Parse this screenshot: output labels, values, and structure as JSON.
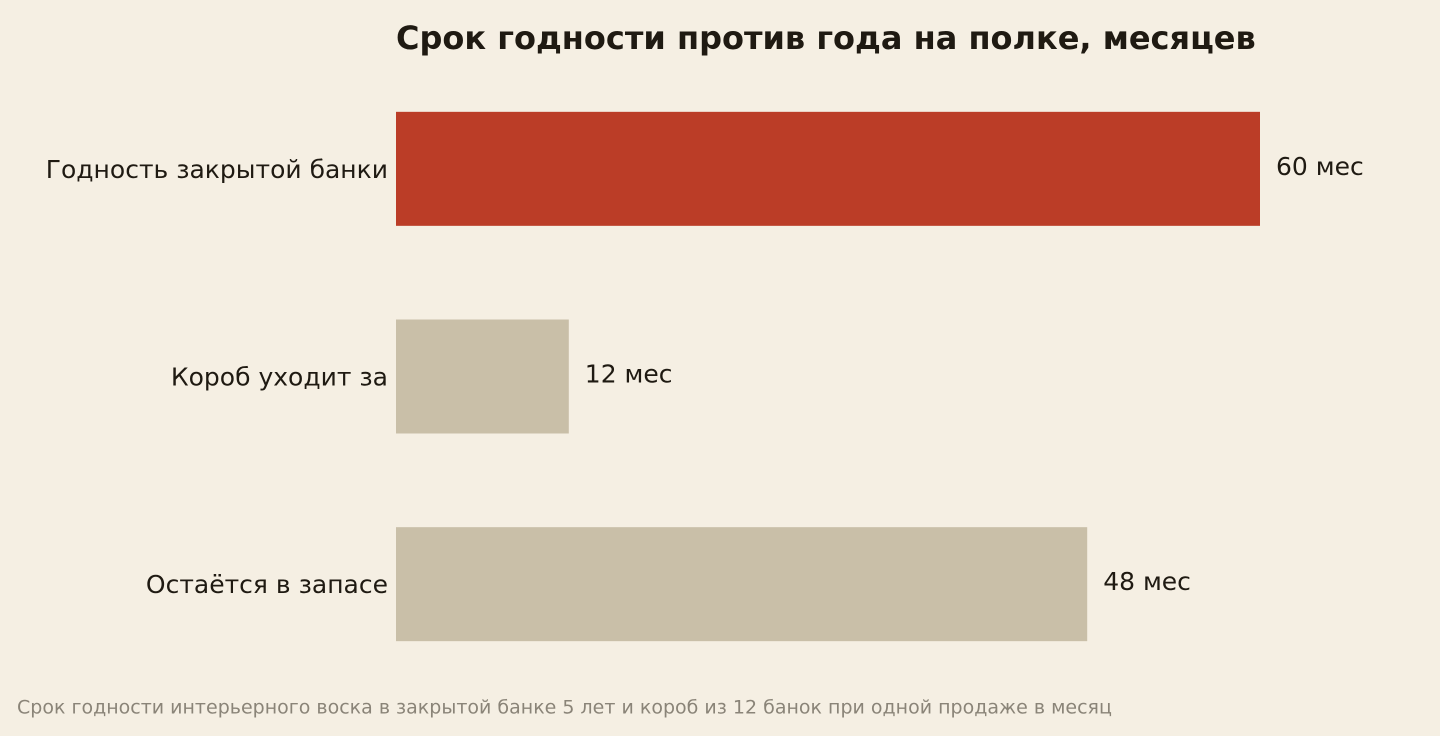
{
  "chart_data": {
    "type": "bar",
    "orientation": "horizontal",
    "title": "Срок годности против года на полке, месяцев",
    "categories": [
      "Годность закрытой банки",
      "Короб уходит за",
      "Остаётся в запасе"
    ],
    "values": [
      60,
      12,
      48
    ],
    "value_labels": [
      "60 мес",
      "12 мес",
      "48 мес"
    ],
    "colors": [
      "#bb3d27",
      "#c9bfa8",
      "#c9bfa8"
    ],
    "xlim": [
      0,
      60
    ],
    "note": "Срок годности интерьерного воска в закрытой банке 5 лет и короб из 12 банок при одной продаже в месяц"
  }
}
